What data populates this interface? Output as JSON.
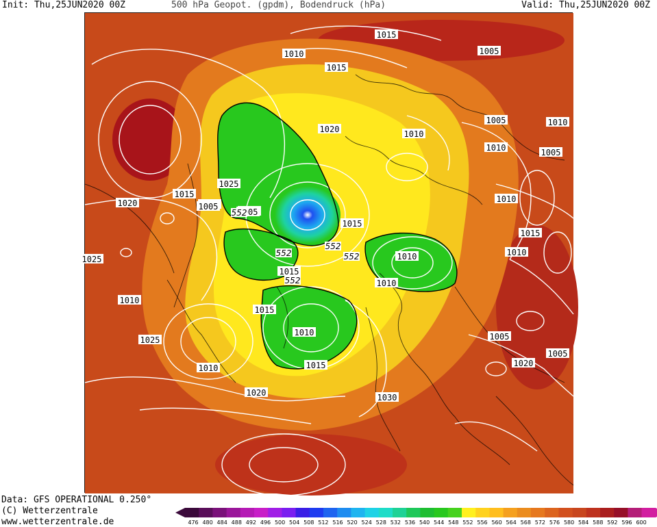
{
  "header": {
    "init": "Init: Thu,25JUN2020 00Z",
    "title": "500 hPa Geopot. (gpdm), Bodendruck (hPa)",
    "valid": "Valid: Thu,25JUN2020 00Z"
  },
  "footer": {
    "data_source": "Data: GFS OPERATIONAL 0.250°",
    "copyright": "(C) Wetterzentrale",
    "url": "www.wetterzentrale.de"
  },
  "legend": {
    "ticks": [
      "476",
      "480",
      "484",
      "488",
      "492",
      "496",
      "500",
      "504",
      "508",
      "512",
      "516",
      "520",
      "524",
      "528",
      "532",
      "536",
      "540",
      "544",
      "548",
      "552",
      "556",
      "560",
      "564",
      "568",
      "572",
      "576",
      "580",
      "584",
      "588",
      "592",
      "596",
      "600"
    ],
    "colors": [
      "#3b0a3b",
      "#5a0f5a",
      "#7a127a",
      "#9a169a",
      "#b51ab5",
      "#c81ec8",
      "#a01ee6",
      "#7a1ef0",
      "#3a1ee6",
      "#1e3cf0",
      "#1e64f0",
      "#1e8cf0",
      "#1eb4f0",
      "#1ed2e6",
      "#1edcc8",
      "#1ed296",
      "#1ec85a",
      "#1ebe32",
      "#28c81e",
      "#46d21e",
      "#fff01e",
      "#ffd21e",
      "#ffbe1e",
      "#f5a01e",
      "#eb8c1e",
      "#e6781e",
      "#dc641e",
      "#d2501e",
      "#c8461e",
      "#be321e",
      "#aa1e1e",
      "#960f28",
      "#b41e78",
      "#d21ea0"
    ],
    "left_arrow_color": "#3b0a3b",
    "right_arrow_color": "#d21ea0"
  },
  "map": {
    "pressure_labels": [
      "1015",
      "1010",
      "1015",
      "1005",
      "1010",
      "1005",
      "1010",
      "1005",
      "1010",
      "1025",
      "1020",
      "1015",
      "1010",
      "1005",
      "1010",
      "1015",
      "1010",
      "1005",
      "1015",
      "1010",
      "1010",
      "1020",
      "1010",
      "1025",
      "1015",
      "1005",
      "1010",
      "1005",
      "1015",
      "1010",
      "1010",
      "1020",
      "1025",
      "1020",
      "1015",
      "1030"
    ],
    "geopotential_labels": [
      "552",
      "552",
      "552",
      "552",
      "552"
    ],
    "colors": {
      "background_red": "#c84a1a",
      "dark_red": "#a81416",
      "orange": "#e67a1e",
      "yellow": "#f5d21e",
      "green": "#28c81e",
      "low_center": "#1e8cf0",
      "isobar": "#ffffff",
      "coastline": "#000000"
    }
  }
}
